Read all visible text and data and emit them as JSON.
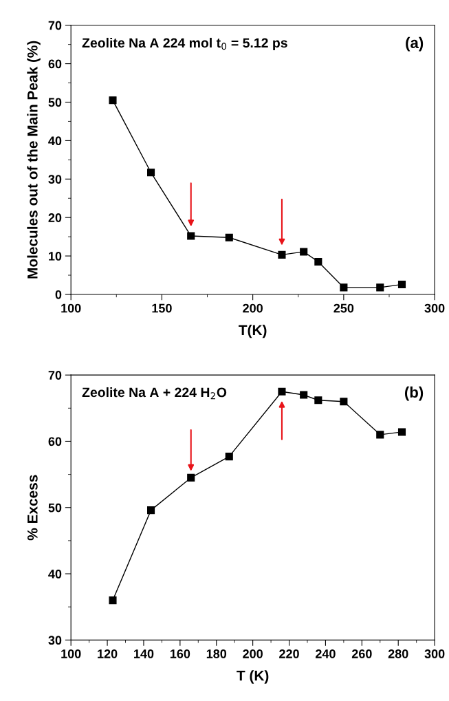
{
  "chart_data": [
    {
      "type": "line",
      "xlabel": "T(K)",
      "ylabel": "Molecules out of the Main Peak (%)",
      "x": [
        123,
        144,
        166,
        187,
        216,
        228,
        236,
        250,
        270,
        282
      ],
      "series": [
        {
          "color": "#000000",
          "values": [
            50.5,
            31.7,
            15.2,
            14.8,
            10.3,
            11.1,
            8.5,
            1.8,
            1.8,
            2.6
          ]
        }
      ],
      "xlim": [
        100,
        300
      ],
      "xticks": [
        100,
        150,
        200,
        250,
        300
      ],
      "ylim": [
        0,
        70
      ],
      "yticks": [
        0,
        10,
        20,
        30,
        40,
        50,
        60,
        70
      ],
      "marker": "square",
      "line_style": "solid",
      "grid": false,
      "legend": false,
      "annotations": [
        "Zeolite Na A 224 mol t$_{0}$ = 5.12 ps",
        "(a)"
      ]
    },
    {
      "type": "line",
      "xlabel": "T (K)",
      "ylabel": "% Excess",
      "x": [
        123,
        144,
        166,
        187,
        216,
        228,
        236,
        250,
        270,
        282
      ],
      "series": [
        {
          "color": "#000000",
          "values": [
            36.0,
            49.6,
            54.5,
            57.7,
            67.5,
            67.0,
            66.2,
            66.0,
            61.0,
            61.4
          ]
        }
      ],
      "xlim": [
        100,
        300
      ],
      "xticks": [
        100,
        120,
        140,
        160,
        180,
        200,
        220,
        240,
        260,
        280,
        300
      ],
      "ylim": [
        30,
        70
      ],
      "yticks": [
        30,
        40,
        50,
        60,
        70
      ],
      "marker": "square",
      "line_style": "solid",
      "grid": false,
      "legend": false,
      "annotations": [
        "Zeolite Na A + 224 H$_{2}$O",
        "(b)"
      ]
    }
  ]
}
